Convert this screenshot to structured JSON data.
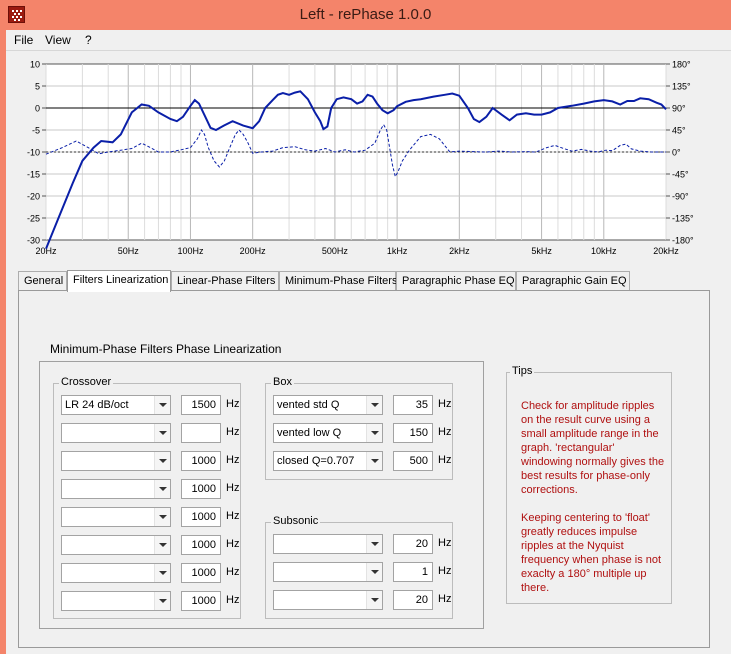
{
  "window": {
    "title": "Left  -  rePhase 1.0.0",
    "title_bar_color": "#f4846a"
  },
  "menu": {
    "file": "File",
    "view": "View",
    "help": "?"
  },
  "graph": {
    "y_left_ticks": [
      "10",
      "5",
      "0",
      "-5",
      "-10",
      "-15",
      "-20",
      "-25",
      "-30"
    ],
    "y_right_ticks": [
      "180°",
      "135°",
      "90°",
      "45°",
      "0°",
      "-45°",
      "-90°",
      "-135°",
      "-180°"
    ],
    "x_ticks": [
      "20Hz",
      "50Hz",
      "100Hz",
      "200Hz",
      "500Hz",
      "1kHz",
      "2kHz",
      "5kHz",
      "10kHz",
      "20kHz"
    ],
    "amplitude_color": "#0a1fa8",
    "phase_color": "#0a1fa8"
  },
  "tabs": [
    "General",
    "Filters Linearization",
    "Linear-Phase Filters",
    "Minimum-Phase Filters",
    "Paragraphic Phase EQ",
    "Paragraphic Gain EQ"
  ],
  "active_tab": "Filters Linearization",
  "panel": {
    "title": "Minimum-Phase Filters Phase Linearization",
    "crossover": {
      "label": "Crossover",
      "rows": [
        {
          "type": "LR  24 dB/oct",
          "freq": "1500",
          "unit": "Hz"
        },
        {
          "type": "",
          "freq": "",
          "unit": "Hz"
        },
        {
          "type": "",
          "freq": "1000",
          "unit": "Hz"
        },
        {
          "type": "",
          "freq": "1000",
          "unit": "Hz"
        },
        {
          "type": "",
          "freq": "1000",
          "unit": "Hz"
        },
        {
          "type": "",
          "freq": "1000",
          "unit": "Hz"
        },
        {
          "type": "",
          "freq": "1000",
          "unit": "Hz"
        },
        {
          "type": "",
          "freq": "1000",
          "unit": "Hz"
        }
      ]
    },
    "box": {
      "label": "Box",
      "rows": [
        {
          "type": "vented std Q",
          "freq": "35",
          "unit": "Hz"
        },
        {
          "type": "vented low Q",
          "freq": "150",
          "unit": "Hz"
        },
        {
          "type": "closed Q=0.707",
          "freq": "500",
          "unit": "Hz"
        }
      ]
    },
    "subsonic": {
      "label": "Subsonic",
      "rows": [
        {
          "type": "",
          "freq": "20",
          "unit": "Hz"
        },
        {
          "type": "",
          "freq": "1",
          "unit": "Hz"
        },
        {
          "type": "",
          "freq": "20",
          "unit": "Hz"
        }
      ]
    },
    "tips": {
      "label": "Tips",
      "paragraph1": "Check for amplitude ripples on the result curve using a small amplitude range in the graph. 'rectangular' windowing normally gives the best results for phase-only corrections.",
      "paragraph2": "Keeping centering to 'float' greatly reduces impulse ripples at the Nyquist frequency when phase is not exaclty a 180° multiple up there."
    }
  }
}
